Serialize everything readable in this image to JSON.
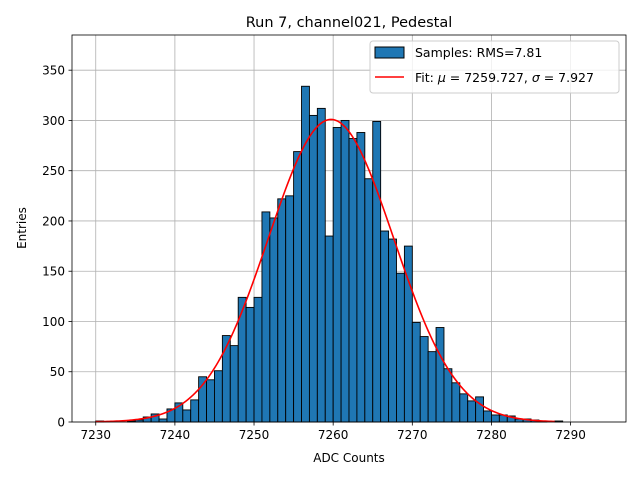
{
  "chart_data": {
    "type": "bar",
    "title": "Run 7, channel021, Pedestal",
    "xlabel": "ADC Counts",
    "ylabel": "Entries",
    "xlim": [
      7227,
      7297
    ],
    "ylim": [
      0,
      385
    ],
    "xticks": [
      7230,
      7240,
      7250,
      7260,
      7270,
      7280,
      7290
    ],
    "yticks": [
      0,
      50,
      100,
      150,
      200,
      250,
      300,
      350
    ],
    "grid": true,
    "legend_position": "top-right",
    "colors": {
      "bar": "#1f77b4",
      "bar_edge": "#000000",
      "fit": "#ff0000",
      "grid": "#b0b0b0"
    },
    "series": [
      {
        "name": "Samples: RMS=7.81",
        "kind": "histogram",
        "bin_width": 1,
        "bin_start": [
          7230,
          7231,
          7232,
          7233,
          7234,
          7235,
          7236,
          7237,
          7238,
          7239,
          7240,
          7241,
          7242,
          7243,
          7244,
          7245,
          7246,
          7247,
          7248,
          7249,
          7250,
          7251,
          7252,
          7253,
          7254,
          7255,
          7256,
          7257,
          7258,
          7259,
          7260,
          7261,
          7262,
          7263,
          7264,
          7265,
          7266,
          7267,
          7268,
          7269,
          7270,
          7271,
          7272,
          7273,
          7274,
          7275,
          7276,
          7277,
          7278,
          7279,
          7280,
          7281,
          7282,
          7283,
          7284,
          7285,
          7286,
          7287,
          7288
        ],
        "values": [
          1,
          0,
          0,
          0,
          1,
          2,
          5,
          8,
          3,
          13,
          19,
          12,
          22,
          45,
          42,
          51,
          86,
          76,
          124,
          114,
          124,
          209,
          203,
          222,
          225,
          269,
          334,
          305,
          312,
          185,
          293,
          300,
          282,
          288,
          242,
          299,
          190,
          182,
          148,
          175,
          99,
          85,
          70,
          94,
          53,
          39,
          28,
          21,
          25,
          11,
          7,
          7,
          6,
          3,
          3,
          2,
          1,
          0,
          1
        ]
      },
      {
        "name": "Fit: μ = 7259.727, σ = 7.927",
        "kind": "gaussian",
        "mu": 7259.727,
        "sigma": 7.927,
        "amplitude": 301,
        "x_range": [
          7230,
          7288
        ]
      }
    ],
    "legend": {
      "entries": [
        {
          "text": "Samples: RMS=7.81",
          "prefix": "",
          "mu_symbol": "",
          "mid": "",
          "sigma_symbol": "",
          "suffix": ""
        },
        {
          "text": "",
          "prefix": "Fit: ",
          "mu_symbol": "μ",
          "mid": " = 7259.727, ",
          "sigma_symbol": "σ",
          "suffix": " = 7.927"
        }
      ]
    }
  }
}
